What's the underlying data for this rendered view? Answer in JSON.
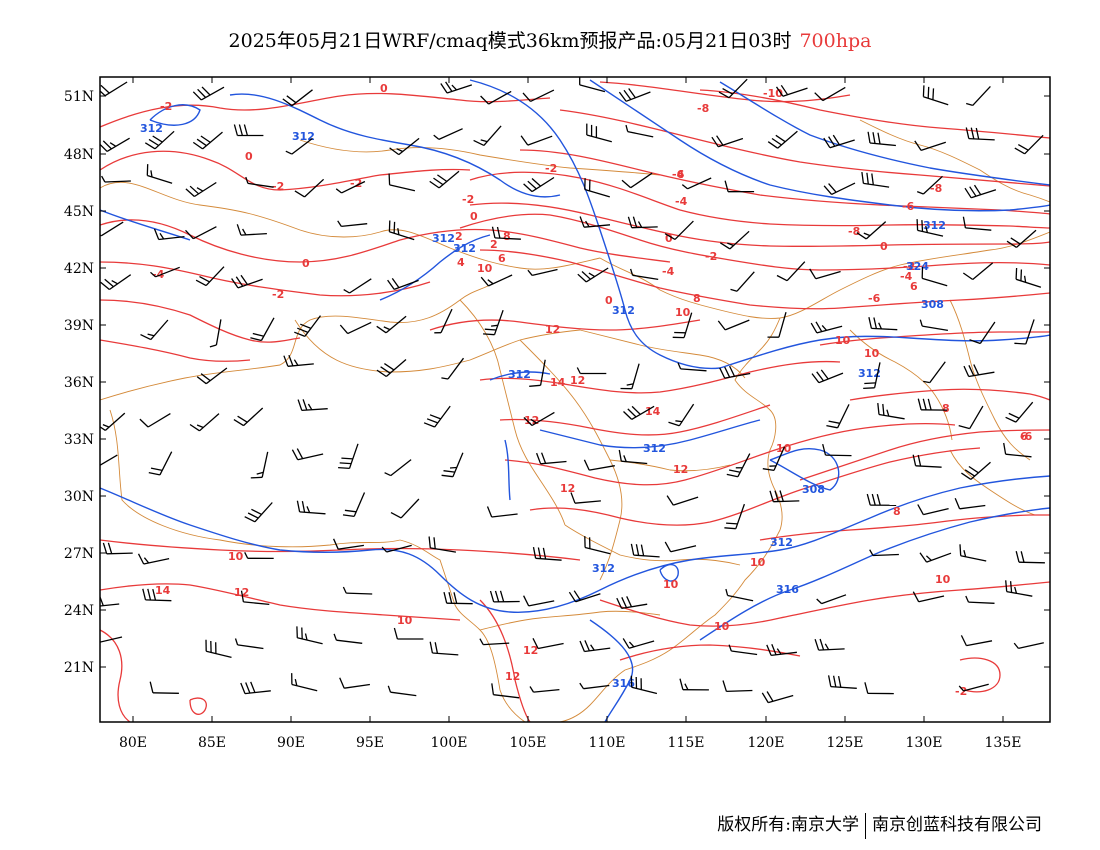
{
  "title": {
    "main": "2025年05月21日WRF/cmaq模式36km预报产品:05月21日03时",
    "level": "700hpa"
  },
  "axes": {
    "lat_labels": [
      "51N",
      "48N",
      "45N",
      "42N",
      "39N",
      "36N",
      "33N",
      "30N",
      "27N",
      "24N",
      "21N"
    ],
    "lon_labels": [
      "80E",
      "85E",
      "90E",
      "95E",
      "100E",
      "105E",
      "110E",
      "115E",
      "120E",
      "125E",
      "130E",
      "135E"
    ]
  },
  "colors": {
    "temperature": "#e83a3a",
    "height": "#2255dd",
    "border": "#d48a3a",
    "wind": "#000000"
  },
  "contour_labels": {
    "temperature": [
      "-2",
      "0",
      "-2",
      "0",
      "-2",
      "-2",
      "-4",
      "-2",
      "0",
      "-2",
      "0",
      "2",
      "6",
      "8",
      "10",
      "-4",
      "-6",
      "-8",
      "-10",
      "-6",
      "-8",
      "-4",
      "-8",
      "-6",
      "0",
      "-2",
      "0",
      "-4",
      "2",
      "4",
      "-2",
      "8",
      "10",
      "6",
      "12",
      "14",
      "12",
      "14",
      "12",
      "12",
      "10",
      "8",
      "10",
      "10",
      "6",
      "8",
      "10",
      "10",
      "10",
      "10",
      "14",
      "12",
      "12",
      "10",
      "12",
      "12",
      "10",
      "-6",
      "-4",
      "0",
      "-2"
    ],
    "height": [
      "312",
      "312",
      "312",
      "312",
      "312",
      "312",
      "308",
      "312",
      "312",
      "308",
      "312",
      "312",
      "312",
      "316",
      "316",
      "324"
    ]
  },
  "footer": {
    "left": "版权所有:南京大学",
    "right": "南京创蓝科技有限公司"
  }
}
